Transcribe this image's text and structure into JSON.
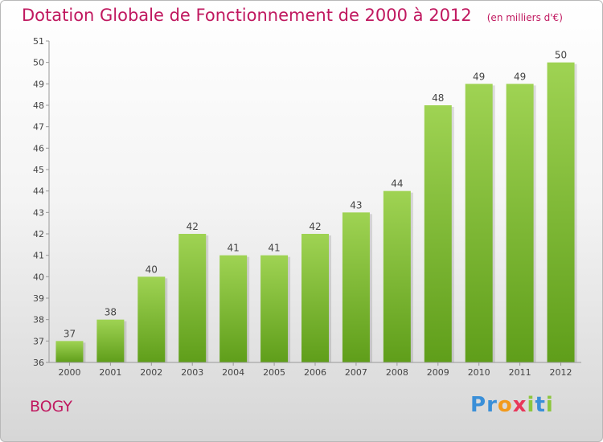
{
  "header": {
    "title": "Dotation Globale de Fonctionnement de 2000 à 2012",
    "unit": "(en milliers d'€)"
  },
  "footer": {
    "place": "BOGY",
    "logo": {
      "text": "Proxiti",
      "letter_colors": [
        "#3a8fd8",
        "#3a8fd8",
        "#f29a1c",
        "#e8375a",
        "#8cc63e",
        "#3a8fd8",
        "#8cc63e"
      ]
    }
  },
  "colors": {
    "bar_top": "#9fd353",
    "bar_bottom": "#5f9e1a",
    "title": "#c0185f"
  },
  "chart_data": {
    "type": "bar",
    "title": "Dotation Globale de Fonctionnement de 2000 à 2012",
    "subtitle": "(en milliers d'€)",
    "categories": [
      "2000",
      "2001",
      "2002",
      "2003",
      "2004",
      "2005",
      "2006",
      "2007",
      "2008",
      "2009",
      "2010",
      "2011",
      "2012"
    ],
    "values": [
      37,
      38,
      40,
      42,
      41,
      41,
      42,
      43,
      44,
      48,
      49,
      49,
      50
    ],
    "ylim": [
      36,
      51
    ],
    "yticks": [
      36,
      37,
      38,
      39,
      40,
      41,
      42,
      43,
      44,
      45,
      46,
      47,
      48,
      49,
      50,
      51
    ],
    "grid": false,
    "data_labels": true
  }
}
